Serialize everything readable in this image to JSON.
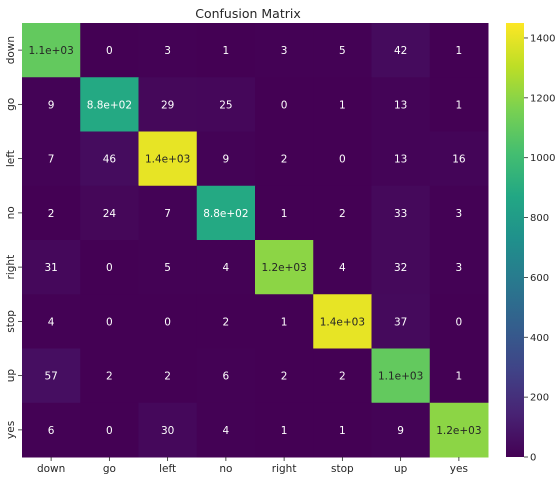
{
  "chart_data": {
    "type": "heatmap",
    "title": "Confusion Matrix",
    "xlabel": "",
    "ylabel": "",
    "x_categories": [
      "down",
      "go",
      "left",
      "no",
      "right",
      "stop",
      "up",
      "yes"
    ],
    "y_categories": [
      "down",
      "go",
      "left",
      "no",
      "right",
      "stop",
      "up",
      "yes"
    ],
    "values": [
      [
        1100,
        0,
        3,
        1,
        3,
        5,
        42,
        1
      ],
      [
        9,
        880,
        29,
        25,
        0,
        1,
        13,
        1
      ],
      [
        7,
        46,
        1400,
        9,
        2,
        0,
        13,
        16
      ],
      [
        2,
        24,
        7,
        880,
        1,
        2,
        33,
        3
      ],
      [
        31,
        0,
        5,
        4,
        1200,
        4,
        32,
        3
      ],
      [
        4,
        0,
        0,
        2,
        1,
        1400,
        37,
        0
      ],
      [
        57,
        2,
        2,
        6,
        2,
        2,
        1100,
        1
      ],
      [
        6,
        0,
        30,
        4,
        1,
        1,
        9,
        1200
      ]
    ],
    "annotations": [
      [
        "1.1e+03",
        "0",
        "3",
        "1",
        "3",
        "5",
        "42",
        "1"
      ],
      [
        "9",
        "8.8e+02",
        "29",
        "25",
        "0",
        "1",
        "13",
        "1"
      ],
      [
        "7",
        "46",
        "1.4e+03",
        "9",
        "2",
        "0",
        "13",
        "16"
      ],
      [
        "2",
        "24",
        "7",
        "8.8e+02",
        "1",
        "2",
        "33",
        "3"
      ],
      [
        "31",
        "0",
        "5",
        "4",
        "1.2e+03",
        "4",
        "32",
        "3"
      ],
      [
        "4",
        "0",
        "0",
        "2",
        "1",
        "1.4e+03",
        "37",
        "0"
      ],
      [
        "57",
        "2",
        "2",
        "6",
        "2",
        "2",
        "1.1e+03",
        "1"
      ],
      [
        "6",
        "0",
        "30",
        "4",
        "1",
        "1",
        "9",
        "1.2e+03"
      ]
    ],
    "colormap": "viridis",
    "color_range": [
      0,
      1450
    ],
    "colorbar_ticks": [
      "0",
      "200",
      "400",
      "600",
      "800",
      "1000",
      "1200",
      "1400"
    ],
    "colorbar_tick_values": [
      0,
      200,
      400,
      600,
      800,
      1000,
      1200,
      1400
    ],
    "legend": "colorbar-right",
    "grid": false
  }
}
